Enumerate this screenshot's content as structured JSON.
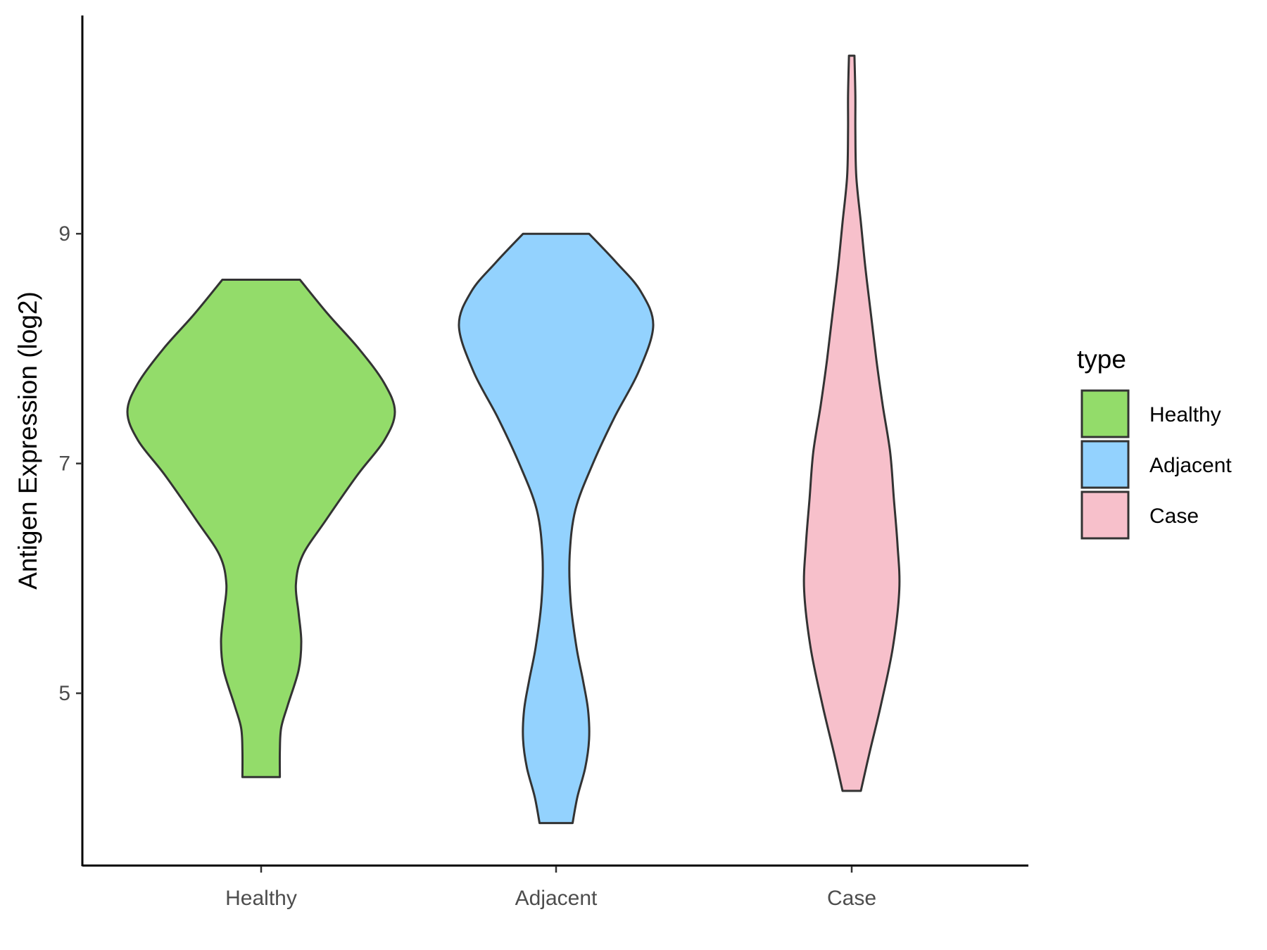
{
  "chart_data": {
    "type": "violin",
    "ylabel": "Antigen Expression (log2)",
    "xlabel": "",
    "categories": [
      "Healthy",
      "Adjacent",
      "Case"
    ],
    "y_ticks": [
      5,
      7,
      9
    ],
    "ylim": [
      3.5,
      10.9
    ],
    "grid": false,
    "legend": {
      "title": "type",
      "position": "right",
      "entries": [
        "Healthy",
        "Adjacent",
        "Case"
      ]
    },
    "colors": {
      "Healthy": "#93dc6a",
      "Adjacent": "#93d2fe",
      "Case": "#f7c0cb",
      "outline": "#333333"
    },
    "series": [
      {
        "category": "Healthy",
        "min": 4.27,
        "max": 8.6,
        "density_profile": [
          [
            4.27,
            0.14
          ],
          [
            4.5,
            0.14
          ],
          [
            4.7,
            0.15
          ],
          [
            4.9,
            0.2
          ],
          [
            5.2,
            0.28
          ],
          [
            5.45,
            0.3
          ],
          [
            5.7,
            0.28
          ],
          [
            5.95,
            0.26
          ],
          [
            6.2,
            0.31
          ],
          [
            6.5,
            0.48
          ],
          [
            6.9,
            0.72
          ],
          [
            7.2,
            0.92
          ],
          [
            7.45,
            1.0
          ],
          [
            7.7,
            0.92
          ],
          [
            8.0,
            0.73
          ],
          [
            8.3,
            0.5
          ],
          [
            8.6,
            0.29
          ]
        ]
      },
      {
        "category": "Adjacent",
        "min": 3.87,
        "max": 9.0,
        "density_profile": [
          [
            3.87,
            0.17
          ],
          [
            4.1,
            0.22
          ],
          [
            4.35,
            0.3
          ],
          [
            4.6,
            0.34
          ],
          [
            4.85,
            0.33
          ],
          [
            5.1,
            0.28
          ],
          [
            5.4,
            0.21
          ],
          [
            5.8,
            0.15
          ],
          [
            6.2,
            0.14
          ],
          [
            6.6,
            0.2
          ],
          [
            7.0,
            0.38
          ],
          [
            7.4,
            0.6
          ],
          [
            7.8,
            0.85
          ],
          [
            8.2,
            1.0
          ],
          [
            8.5,
            0.87
          ],
          [
            8.75,
            0.62
          ],
          [
            9.0,
            0.34
          ]
        ]
      },
      {
        "category": "Case",
        "min": 4.15,
        "max": 10.55,
        "density_profile": [
          [
            4.15,
            0.1
          ],
          [
            4.5,
            0.2
          ],
          [
            4.9,
            0.32
          ],
          [
            5.4,
            0.45
          ],
          [
            5.9,
            0.52
          ],
          [
            6.3,
            0.5
          ],
          [
            6.7,
            0.46
          ],
          [
            7.1,
            0.42
          ],
          [
            7.5,
            0.34
          ],
          [
            7.9,
            0.27
          ],
          [
            8.3,
            0.21
          ],
          [
            8.7,
            0.15
          ],
          [
            9.1,
            0.1
          ],
          [
            9.5,
            0.05
          ],
          [
            9.9,
            0.04
          ],
          [
            10.2,
            0.04
          ],
          [
            10.55,
            0.03
          ]
        ]
      }
    ]
  }
}
